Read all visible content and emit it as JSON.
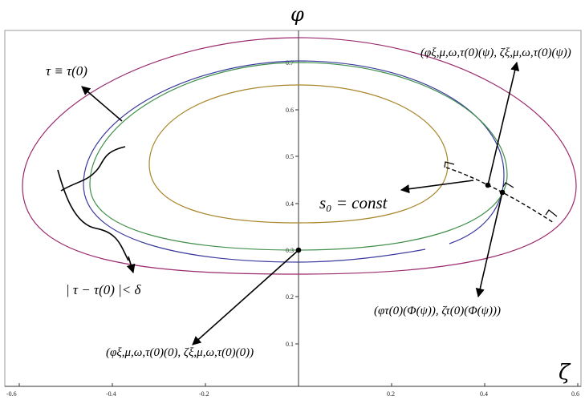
{
  "axes": {
    "vertical_label": "φ",
    "horizontal_label": "ζ",
    "x_ticks": [
      "-0.6",
      "-0.4",
      "-0.2",
      "0.2",
      "0.4",
      "0.6"
    ],
    "y_ticks": [
      "0.1",
      "0.2",
      "0.3",
      "0.4",
      "0.5",
      "0.6",
      "0.7"
    ]
  },
  "curve_colors": {
    "outer": "#9b2a6e",
    "blue": "#3a3a9e",
    "green": "#3f8f4a",
    "inner": "#a8862a"
  },
  "annotations": {
    "tau_eq": "τ ≡ τ(0)",
    "tau_delta": "| τ − τ(0) |< δ",
    "s0_const": "s₀ = const",
    "top_right_point": "(φξ,μ,ω,τ(0)(ψ), ζξ,μ,ω,τ(0)(ψ))",
    "bottom_left_point": "(φξ,μ,ω,τ(0)(0), ζξ,μ,ω,τ(0)(0))",
    "right_point": "(φτ(0)(Φ(ψ)), ζτ(0)(Φ(ψ)))"
  }
}
